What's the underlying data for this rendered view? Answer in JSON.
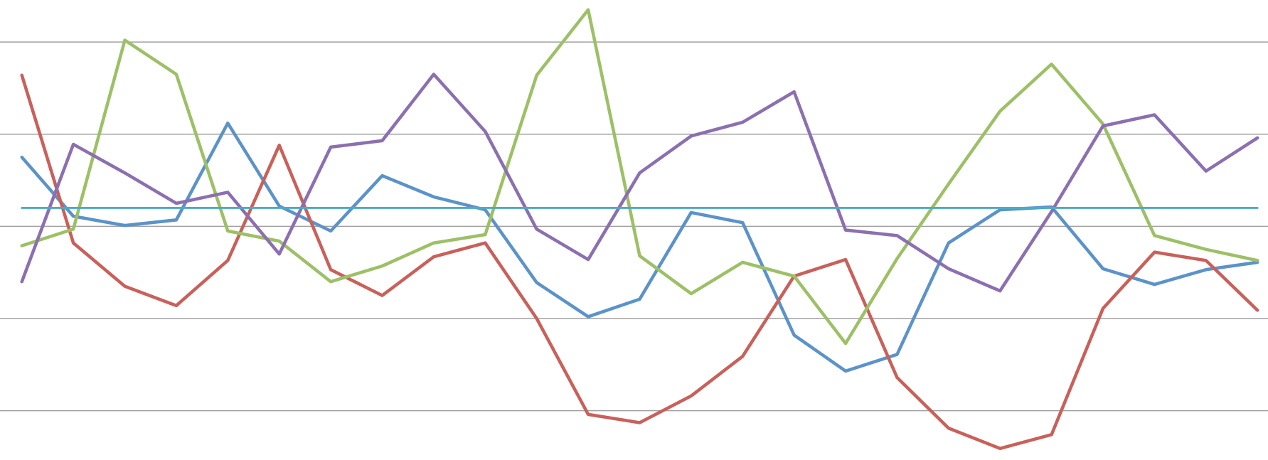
{
  "chart_data": {
    "type": "line",
    "categories": [
      null,
      null,
      null,
      null,
      null,
      null,
      null,
      null,
      null,
      null,
      null,
      null,
      null,
      null,
      null,
      null,
      null,
      null,
      null,
      null,
      null,
      null,
      null,
      null,
      null
    ],
    "series": [
      {
        "color": "#5b93c9",
        "values": [
          2.75,
          2.11,
          2.01,
          2.07,
          3.12,
          2.22,
          1.95,
          2.55,
          2.32,
          2.18,
          1.39,
          1.02,
          1.21,
          2.15,
          2.04,
          0.82,
          0.43,
          0.61,
          1.82,
          2.18,
          2.21,
          1.54,
          1.37,
          1.53,
          1.61
        ]
      },
      {
        "color": "#c9605a",
        "values": [
          3.64,
          1.82,
          1.35,
          1.14,
          1.63,
          2.88,
          1.53,
          1.25,
          1.67,
          1.82,
          1.0,
          -0.04,
          -0.13,
          0.16,
          0.59,
          1.46,
          1.64,
          0.36,
          -0.19,
          -0.41,
          -0.26,
          1.11,
          1.72,
          1.63,
          1.09
        ]
      },
      {
        "color": "#9dc066",
        "values": [
          1.79,
          1.97,
          4.02,
          3.65,
          1.95,
          1.84,
          1.4,
          1.57,
          1.82,
          1.91,
          3.64,
          4.35,
          1.68,
          1.27,
          1.61,
          1.46,
          0.73,
          1.65,
          2.46,
          3.25,
          3.76,
          3.11,
          1.9,
          1.75,
          1.63
        ]
      },
      {
        "color": "#8c6fb0",
        "values": [
          1.4,
          2.89,
          2.58,
          2.25,
          2.37,
          1.7,
          2.86,
          2.93,
          3.65,
          3.03,
          1.97,
          1.64,
          2.58,
          2.98,
          3.13,
          3.46,
          1.96,
          1.9,
          1.54,
          1.3,
          2.16,
          3.09,
          3.21,
          2.6,
          2.96
        ]
      },
      {
        "color": "#4bacc6",
        "values": [
          2.2,
          2.2,
          2.2,
          2.2,
          2.2,
          2.2,
          2.2,
          2.2,
          2.2,
          2.2,
          2.2,
          2.2,
          2.2,
          2.2,
          2.2,
          2.2,
          2.2,
          2.2,
          2.2,
          2.2,
          2.2,
          2.2,
          2.2,
          2.2,
          2.2
        ]
      }
    ],
    "ylim": [
      -0.5,
      4.5
    ],
    "yticks": [
      0,
      1,
      2,
      3,
      4
    ],
    "grid": true,
    "grid_color": "#a0a0a0"
  }
}
